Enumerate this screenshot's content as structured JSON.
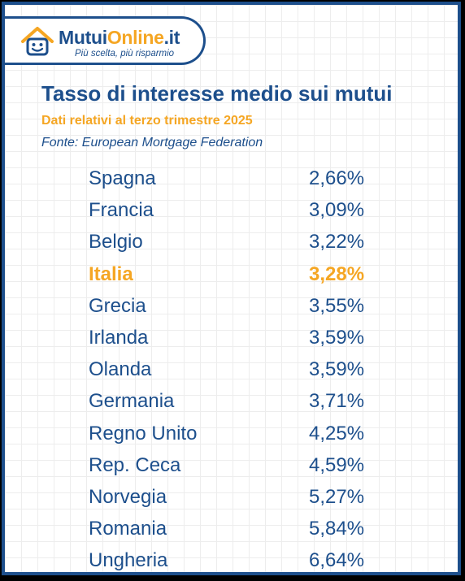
{
  "logo": {
    "brand_main": "Mutui",
    "brand_accent": "Online",
    "brand_suffix": ".it",
    "tagline": "Più scelta, più risparmio",
    "icon": "house-smiley-icon"
  },
  "colors": {
    "primary": "#1d4f8c",
    "accent": "#f5a623",
    "grid": "#ededed"
  },
  "header": {
    "title": "Tasso di interesse medio sui mutui",
    "subtitle": "Dati relativi al terzo trimestre 2025",
    "source": "Fonte: European Mortgage Federation"
  },
  "chart_data": {
    "type": "table",
    "title": "Tasso di interesse medio sui mutui",
    "subtitle": "Dati relativi al terzo trimestre 2025",
    "source": "Fonte: European Mortgage Federation",
    "highlight": "Italia",
    "rows": [
      {
        "country": "Spagna",
        "label": "2,66%",
        "value": 2.66
      },
      {
        "country": "Francia",
        "label": "3,09%",
        "value": 3.09
      },
      {
        "country": "Belgio",
        "label": "3,22%",
        "value": 3.22
      },
      {
        "country": "Italia",
        "label": "3,28%",
        "value": 3.28
      },
      {
        "country": "Grecia",
        "label": "3,55%",
        "value": 3.55
      },
      {
        "country": "Irlanda",
        "label": "3,59%",
        "value": 3.59
      },
      {
        "country": "Olanda",
        "label": "3,59%",
        "value": 3.59
      },
      {
        "country": "Germania",
        "label": "3,71%",
        "value": 3.71
      },
      {
        "country": "Regno Unito",
        "label": "4,25%",
        "value": 4.25
      },
      {
        "country": "Rep. Ceca",
        "label": "4,59%",
        "value": 4.59
      },
      {
        "country": "Norvegia",
        "label": "5,27%",
        "value": 5.27
      },
      {
        "country": "Romania",
        "label": "5,84%",
        "value": 5.84
      },
      {
        "country": "Ungheria",
        "label": "6,64%",
        "value": 6.64
      }
    ]
  }
}
